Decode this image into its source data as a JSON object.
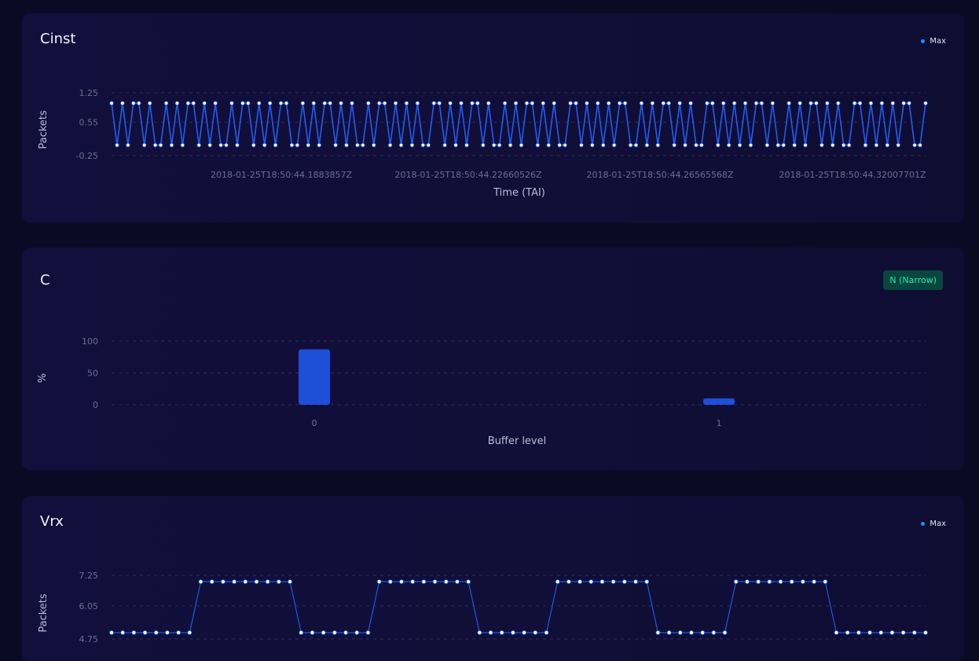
{
  "colors": {
    "background": "#0b0a24",
    "panel": "#120f3c",
    "series": "#1f5ef5",
    "legend_dot": "#1e8bff",
    "badge_bg": "#07473f",
    "badge_text": "#2ee6a8"
  },
  "panels": [
    {
      "title": "Cinst",
      "legend": "Max"
    },
    {
      "title": "C",
      "badge": "N (Narrow)"
    },
    {
      "title": "Vrx",
      "legend": "Max"
    }
  ],
  "chart_data": [
    {
      "type": "line",
      "title": "Cinst",
      "xlabel": "Time (TAI)",
      "ylabel": "Packets",
      "yticks": [
        "1.25",
        "0.55",
        "-0.25"
      ],
      "ylim": [
        -0.25,
        1.25
      ],
      "x_tick_labels": [
        "2018-01-25T18:50:44.1883857Z",
        "2018-01-25T18:50:44.22660526Z",
        "2018-01-25T18:50:44.26565568Z",
        "2018-01-25T18:50:44.32007701Z"
      ],
      "series": [
        {
          "name": "Max",
          "values": [
            1,
            0,
            1,
            0,
            1,
            1,
            0,
            1,
            0,
            0,
            1,
            0,
            1,
            0,
            1,
            1,
            0,
            1,
            0,
            1,
            0,
            0,
            1,
            0,
            1,
            1,
            0,
            1,
            0,
            1,
            0,
            1,
            1,
            0,
            0,
            1,
            0,
            1,
            0,
            1,
            1,
            0,
            1,
            0,
            1,
            0,
            0,
            1,
            0,
            1,
            1,
            0,
            1,
            0,
            1,
            0,
            1,
            0,
            0,
            1,
            1,
            0,
            1,
            0,
            1,
            0,
            1,
            1,
            0,
            1,
            0,
            0,
            1,
            0,
            1,
            0,
            1,
            1,
            0,
            1,
            0,
            1,
            0,
            0,
            1,
            1,
            0,
            1,
            0,
            1,
            0,
            1,
            0,
            1,
            1,
            0,
            0,
            1,
            0,
            1,
            0,
            1,
            1,
            0,
            1,
            0,
            1,
            0,
            0,
            1,
            1,
            0,
            1,
            0,
            1,
            0,
            1,
            0,
            1,
            1,
            0,
            1,
            0,
            0,
            1,
            0,
            1,
            0,
            1,
            1,
            0,
            1,
            0,
            1,
            0,
            0,
            1,
            1,
            0,
            1,
            0,
            1,
            0,
            1,
            0,
            1,
            1,
            0,
            0,
            1
          ]
        }
      ]
    },
    {
      "type": "bar",
      "title": "C",
      "xlabel": "Buffer level",
      "ylabel": "%",
      "categories": [
        "0",
        "1"
      ],
      "values": [
        87,
        10
      ],
      "yticks": [
        "100",
        "50",
        "0"
      ],
      "ylim": [
        0,
        100
      ]
    },
    {
      "type": "line",
      "title": "Vrx",
      "ylabel": "Packets",
      "yticks": [
        "7.25",
        "6.05",
        "4.75"
      ],
      "ylim": [
        4.75,
        7.25
      ],
      "series": [
        {
          "name": "Max",
          "values": [
            5,
            5,
            5,
            5,
            5,
            5,
            5,
            5,
            7,
            7,
            7,
            7,
            7,
            7,
            7,
            7,
            7,
            5,
            5,
            5,
            5,
            5,
            5,
            5,
            7,
            7,
            7,
            7,
            7,
            7,
            7,
            7,
            7,
            5,
            5,
            5,
            5,
            5,
            5,
            5,
            7,
            7,
            7,
            7,
            7,
            7,
            7,
            7,
            7,
            5,
            5,
            5,
            5,
            5,
            5,
            5,
            7,
            7,
            7,
            7,
            7,
            7,
            7,
            7,
            7,
            5,
            5,
            5,
            5,
            5,
            5,
            5,
            5,
            5
          ]
        }
      ]
    }
  ]
}
